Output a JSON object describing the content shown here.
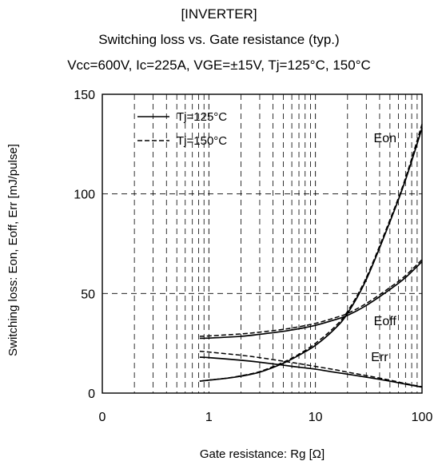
{
  "header": {
    "line1": "[INVERTER]",
    "line2": "Switching loss  vs.  Gate resistance (typ.)",
    "line3": "Vcc=600V, Ic=225A, VGE=±15V, Tj=125°C, 150°C"
  },
  "chart_data": {
    "type": "line",
    "xscale": "log",
    "xlim": [
      0.1,
      100
    ],
    "ylim": [
      0,
      150
    ],
    "xlabel": "Gate resistance: Rg [Ω]",
    "ylabel": "Switching loss: Eon, Eoff, Err [mJ/pulse]",
    "x_ticks": [
      {
        "value": 0.1,
        "label": "0"
      },
      {
        "value": 1,
        "label": "1"
      },
      {
        "value": 10,
        "label": "10"
      },
      {
        "value": 100,
        "label": "100"
      }
    ],
    "y_ticks": [
      {
        "value": 0,
        "label": "0"
      },
      {
        "value": 50,
        "label": "50"
      },
      {
        "value": 100,
        "label": "100"
      },
      {
        "value": 150,
        "label": "150"
      }
    ],
    "grid": true,
    "legend": {
      "position": "top-left",
      "entries": [
        "Tj=125°C",
        "Tj=150°C"
      ]
    },
    "curve_labels": [
      {
        "text": "Eon",
        "x": 45,
        "y": 128
      },
      {
        "text": "Eoff",
        "x": 45,
        "y": 36
      },
      {
        "text": "Err",
        "x": 40,
        "y": 18
      }
    ],
    "series": [
      {
        "curve": "Eon",
        "name": "Tj=125°C",
        "dash": "solid",
        "x": [
          0.82,
          1,
          1.5,
          2,
          3,
          5,
          7,
          10,
          15,
          20,
          30,
          50,
          70,
          100
        ],
        "y": [
          6,
          6.5,
          7.5,
          8.5,
          10.5,
          15,
          19,
          24,
          32,
          40,
          57,
          86,
          107,
          133
        ]
      },
      {
        "curve": "Eon",
        "name": "Tj=150°C",
        "dash": "dashed",
        "x": [
          0.82,
          1,
          1.5,
          2,
          3,
          5,
          7,
          10,
          15,
          20,
          30,
          50,
          70,
          100
        ],
        "y": [
          6,
          6.5,
          7.6,
          8.7,
          10.8,
          15.5,
          19.5,
          25,
          33,
          41,
          58,
          87,
          108,
          135
        ]
      },
      {
        "curve": "Eoff",
        "name": "Tj=125°C",
        "dash": "solid",
        "x": [
          0.82,
          1,
          2,
          3,
          5,
          7,
          10,
          15,
          20,
          30,
          50,
          70,
          100
        ],
        "y": [
          27.5,
          27.6,
          28.5,
          29.5,
          31,
          32.3,
          34,
          36.7,
          39,
          44,
          52,
          58,
          66
        ]
      },
      {
        "curve": "Eoff",
        "name": "Tj=150°C",
        "dash": "dashed",
        "x": [
          0.82,
          1,
          2,
          3,
          5,
          7,
          10,
          15,
          20,
          30,
          50,
          70,
          100
        ],
        "y": [
          28.5,
          28.7,
          29.7,
          30.6,
          32,
          33.3,
          35,
          37.7,
          40,
          45,
          53,
          59,
          67
        ]
      },
      {
        "curve": "Err",
        "name": "Tj=125°C",
        "dash": "solid",
        "x": [
          0.82,
          1,
          2,
          3,
          5,
          7,
          10,
          15,
          20,
          30,
          50,
          70,
          100
        ],
        "y": [
          18,
          17.8,
          16.5,
          15.5,
          14,
          13,
          12,
          10.5,
          9.5,
          8,
          6,
          4.5,
          3
        ]
      },
      {
        "curve": "Err",
        "name": "Tj=150°C",
        "dash": "dashed",
        "x": [
          0.82,
          1,
          2,
          3,
          5,
          7,
          10,
          15,
          20,
          30,
          50,
          70,
          100
        ],
        "y": [
          21,
          20.6,
          19,
          17.8,
          16,
          14.8,
          13.4,
          11.8,
          10.5,
          8.8,
          6.5,
          4.8,
          3.2
        ]
      }
    ]
  }
}
